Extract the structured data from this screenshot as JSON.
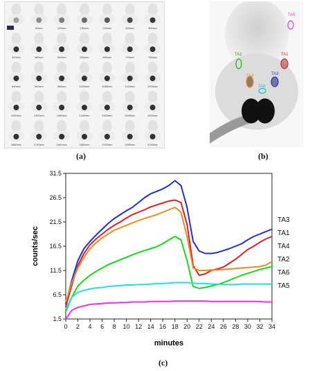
{
  "panel_a": {
    "label": "(a)",
    "frame_labels": [
      "",
      "60sec",
      "120sec",
      "180sec",
      "240sec",
      "300sec",
      "360sec",
      "420sec",
      "480sec",
      "540sec",
      "600sec",
      "660sec",
      "720sec",
      "780sec",
      "840sec",
      "900sec",
      "960sec",
      "1020sec",
      "1080sec",
      "1140sec",
      "1200sec",
      "1260sec",
      "1320sec",
      "1380sec",
      "1440sec",
      "1500sec",
      "1560sec",
      "1620sec",
      "1680sec",
      "1740sec",
      "1800sec",
      "1860sec",
      "1920sec",
      "1980sec",
      "2040sec"
    ]
  },
  "panel_b": {
    "label": "(b)",
    "rois": [
      {
        "name": "TA5",
        "color": "#e040e0"
      },
      {
        "name": "TA2",
        "color": "#22aa22"
      },
      {
        "name": "TA1",
        "color": "#dd2222"
      },
      {
        "name": "TA4",
        "color": "#ee8822"
      },
      {
        "name": "TA3",
        "color": "#2233cc"
      },
      {
        "name": "TA6",
        "color": "#22bbcc"
      }
    ]
  },
  "panel_c": {
    "label": "(c)"
  },
  "chart_data": {
    "type": "line",
    "xlabel": "minutes",
    "ylabel": "counts/sec",
    "xlim": [
      0,
      34
    ],
    "ylim": [
      1.5,
      31.5
    ],
    "x_ticks": [
      "0",
      "2",
      "4",
      "6",
      "8",
      "10",
      "12",
      "14",
      "16",
      "18",
      "20",
      "22",
      "24",
      "26",
      "28",
      "30",
      "32",
      "34"
    ],
    "y_ticks": [
      "1.5",
      "6.5",
      "11.5",
      "16.5",
      "21.5",
      "26.5",
      "31.5"
    ],
    "x": [
      0,
      1,
      2,
      3,
      4,
      5,
      6,
      7,
      8,
      9,
      10,
      11,
      12,
      13,
      14,
      15,
      16,
      17,
      18,
      19,
      20,
      21,
      22,
      23,
      24,
      25,
      26,
      27,
      28,
      29,
      30,
      31,
      32,
      33,
      34
    ],
    "series": [
      {
        "name": "TA3",
        "color": "#1f2ed6",
        "values": [
          4.5,
          9.5,
          13.5,
          16.0,
          17.5,
          18.8,
          20.0,
          21.2,
          22.2,
          23.0,
          23.8,
          24.5,
          25.5,
          26.5,
          27.3,
          27.8,
          28.3,
          29.0,
          30.0,
          29.0,
          24.5,
          17.5,
          15.5,
          15.0,
          15.0,
          15.2,
          15.6,
          16.0,
          16.5,
          17.0,
          17.8,
          18.5,
          19.0,
          19.5,
          20.0
        ]
      },
      {
        "name": "TA1",
        "color": "#e02020",
        "values": [
          4.0,
          8.5,
          12.5,
          15.0,
          16.8,
          18.0,
          19.0,
          20.0,
          20.8,
          21.5,
          22.3,
          23.0,
          23.5,
          24.0,
          24.6,
          25.0,
          25.4,
          25.8,
          26.0,
          25.5,
          21.0,
          12.5,
          10.5,
          10.8,
          11.5,
          11.8,
          12.2,
          13.0,
          13.8,
          14.8,
          15.8,
          16.5,
          17.3,
          18.0,
          18.5
        ]
      },
      {
        "name": "TA4",
        "color": "#f08a20",
        "values": [
          5.0,
          9.0,
          12.0,
          14.2,
          16.0,
          17.2,
          18.2,
          19.0,
          19.8,
          20.3,
          20.8,
          21.3,
          21.8,
          22.2,
          22.6,
          23.0,
          23.5,
          24.0,
          24.5,
          23.5,
          18.5,
          12.0,
          11.5,
          11.5,
          11.6,
          11.6,
          11.7,
          11.8,
          11.9,
          12.0,
          12.1,
          12.2,
          12.3,
          12.6,
          13.3
        ]
      },
      {
        "name": "TA2",
        "color": "#18d818",
        "values": [
          3.0,
          6.0,
          8.3,
          9.5,
          10.5,
          11.3,
          12.0,
          12.7,
          13.2,
          13.7,
          14.2,
          14.7,
          15.2,
          15.6,
          16.0,
          16.4,
          17.0,
          17.8,
          18.5,
          17.8,
          13.5,
          8.2,
          7.8,
          8.0,
          8.3,
          8.6,
          9.0,
          9.5,
          10.0,
          10.5,
          10.9,
          11.3,
          11.7,
          12.0,
          12.3
        ]
      },
      {
        "name": "TA6",
        "color": "#20e0e0",
        "values": [
          3.5,
          6.0,
          7.0,
          7.4,
          7.7,
          7.9,
          8.0,
          8.2,
          8.3,
          8.4,
          8.5,
          8.5,
          8.6,
          8.6,
          8.7,
          8.8,
          8.8,
          8.9,
          9.0,
          9.0,
          9.0,
          8.9,
          8.8,
          8.8,
          8.7,
          8.7,
          8.6,
          8.6,
          8.6,
          8.7,
          8.7,
          8.7,
          8.7,
          8.7,
          8.7
        ]
      },
      {
        "name": "TA5",
        "color": "#f030f0",
        "values": [
          1.5,
          3.3,
          3.9,
          4.2,
          4.5,
          4.6,
          4.7,
          4.8,
          4.8,
          4.9,
          4.9,
          5.0,
          5.0,
          5.0,
          5.1,
          5.1,
          5.1,
          5.1,
          5.2,
          5.2,
          5.2,
          5.2,
          5.2,
          5.2,
          5.1,
          5.1,
          5.1,
          5.1,
          5.1,
          5.1,
          5.1,
          5.1,
          5.1,
          5.0,
          5.0
        ]
      }
    ],
    "legend": [
      "TA3",
      "TA1",
      "TA4",
      "TA2",
      "TA6",
      "TA5"
    ],
    "grid": false
  }
}
